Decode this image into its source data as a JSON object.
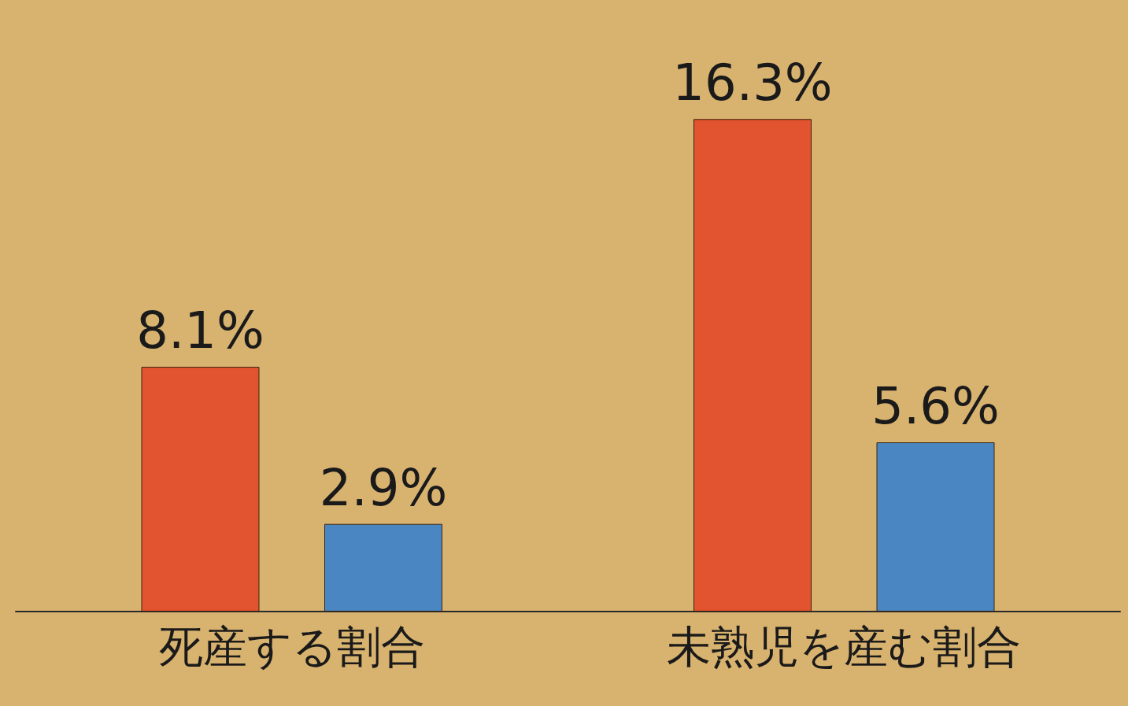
{
  "chart_data": {
    "type": "bar",
    "categories": [
      "死産する割合",
      "未熟児を産む割合"
    ],
    "series": [
      {
        "color": "#e2532f",
        "values": [
          8.1,
          16.3
        ],
        "value_labels": [
          "8.1%",
          "16.3%"
        ]
      },
      {
        "color": "#4a86c2",
        "values": [
          2.9,
          5.6
        ],
        "value_labels": [
          "2.9%",
          "5.6%"
        ]
      }
    ],
    "grid": false
  }
}
